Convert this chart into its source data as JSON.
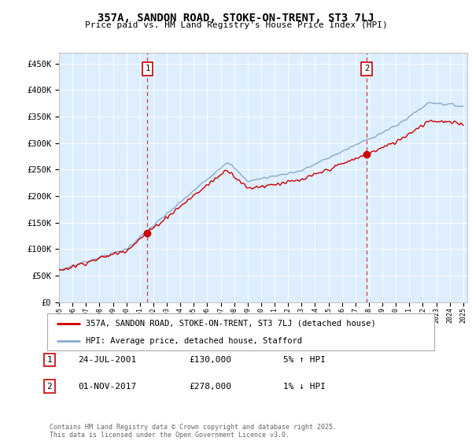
{
  "title": "357A, SANDON ROAD, STOKE-ON-TRENT, ST3 7LJ",
  "subtitle": "Price paid vs. HM Land Registry's House Price Index (HPI)",
  "ylabel_ticks": [
    "£0",
    "£50K",
    "£100K",
    "£150K",
    "£200K",
    "£250K",
    "£300K",
    "£350K",
    "£400K",
    "£450K"
  ],
  "ylim": [
    0,
    470000
  ],
  "yticks": [
    0,
    50000,
    100000,
    150000,
    200000,
    250000,
    300000,
    350000,
    400000,
    450000
  ],
  "red_color": "#cc0000",
  "blue_color": "#88aacc",
  "marker1_year": 2001.56,
  "marker1_price": 130000,
  "marker2_year": 2017.84,
  "marker2_price": 278000,
  "legend_line1": "357A, SANDON ROAD, STOKE-ON-TRENT, ST3 7LJ (detached house)",
  "legend_line2": "HPI: Average price, detached house, Stafford",
  "annotation1_date": "24-JUL-2001",
  "annotation1_price": "£130,000",
  "annotation1_hpi": "5% ↑ HPI",
  "annotation2_date": "01-NOV-2017",
  "annotation2_price": "£278,000",
  "annotation2_hpi": "1% ↓ HPI",
  "footer": "Contains HM Land Registry data © Crown copyright and database right 2025.\nThis data is licensed under the Open Government Licence v3.0.",
  "fig_bg_color": "#ffffff",
  "plot_bg_color": "#ddeeff"
}
